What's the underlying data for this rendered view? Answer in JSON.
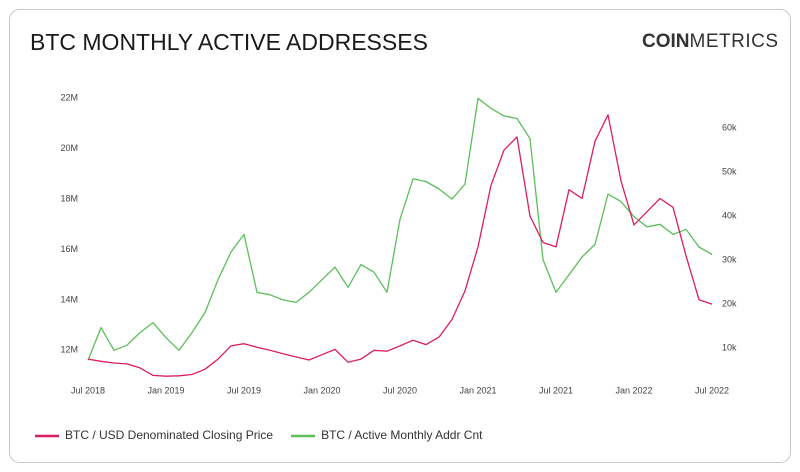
{
  "chart_data": {
    "type": "line",
    "title": "BTC MONTHLY ACTIVE ADDRESSES",
    "logo_bold": "COIN",
    "logo_light": "METRICS",
    "x": [
      "2018-07",
      "2018-08",
      "2018-09",
      "2018-10",
      "2018-11",
      "2018-12",
      "2019-01",
      "2019-02",
      "2019-03",
      "2019-04",
      "2019-05",
      "2019-06",
      "2019-07",
      "2019-08",
      "2019-09",
      "2019-10",
      "2019-11",
      "2019-12",
      "2020-01",
      "2020-02",
      "2020-03",
      "2020-04",
      "2020-05",
      "2020-06",
      "2020-07",
      "2020-08",
      "2020-09",
      "2020-10",
      "2020-11",
      "2020-12",
      "2021-01",
      "2021-02",
      "2021-03",
      "2021-04",
      "2021-05",
      "2021-06",
      "2021-07",
      "2021-08",
      "2021-09",
      "2021-10",
      "2021-11",
      "2021-12",
      "2022-01",
      "2022-02",
      "2022-03",
      "2022-04",
      "2022-05",
      "2022-06",
      "2022-07"
    ],
    "xticks": [
      {
        "value": "2018-07",
        "label": "Jul 2018"
      },
      {
        "value": "2019-01",
        "label": "Jan 2019"
      },
      {
        "value": "2019-07",
        "label": "Jul 2019"
      },
      {
        "value": "2020-01",
        "label": "Jan 2020"
      },
      {
        "value": "2020-07",
        "label": "Jul 2020"
      },
      {
        "value": "2021-01",
        "label": "Jan 2021"
      },
      {
        "value": "2021-07",
        "label": "Jul 2021"
      },
      {
        "value": "2022-01",
        "label": "Jan 2022"
      },
      {
        "value": "2022-07",
        "label": "Jul 2022"
      }
    ],
    "ylim": [
      10900000,
      22250000
    ],
    "yticks": [
      {
        "value": 12000000,
        "label": "12M"
      },
      {
        "value": 14000000,
        "label": "14M"
      },
      {
        "value": 16000000,
        "label": "16M"
      },
      {
        "value": 18000000,
        "label": "18M"
      },
      {
        "value": 20000000,
        "label": "20M"
      },
      {
        "value": 22000000,
        "label": "22M"
      }
    ],
    "y2lim": [
      3200,
      68200
    ],
    "y2ticks": [
      {
        "value": 10000,
        "label": "10k"
      },
      {
        "value": 20000,
        "label": "20k"
      },
      {
        "value": 30000,
        "label": "30k"
      },
      {
        "value": 40000,
        "label": "40k"
      },
      {
        "value": 50000,
        "label": "50k"
      },
      {
        "value": 60000,
        "label": "60k"
      }
    ],
    "grid": false,
    "legend": "bottom-left",
    "series": [
      {
        "name": "BTC / USD Denominated Closing Price",
        "color": "#dc1f5b",
        "axis": "y2",
        "values": [
          7500,
          7000,
          6600,
          6400,
          5500,
          3800,
          3600,
          3700,
          4000,
          5200,
          7500,
          10500,
          11000,
          10200,
          9500,
          8700,
          8000,
          7300,
          8500,
          9700,
          6800,
          7500,
          9500,
          9300,
          10500,
          11800,
          10800,
          12500,
          16500,
          23000,
          33000,
          47000,
          55000,
          58000,
          40000,
          34000,
          33000,
          46000,
          44000,
          57000,
          63000,
          48000,
          38000,
          41000,
          44000,
          42000,
          31000,
          21000,
          20000
        ]
      },
      {
        "name": "BTC / Active Monthly Addr Cnt",
        "color": "#5cbf5c",
        "values": [
          11600000,
          12900000,
          12000000,
          12200000,
          12700000,
          13100000,
          12500000,
          12000000,
          12700000,
          13500000,
          14800000,
          15900000,
          16600000,
          14300000,
          14200000,
          14000000,
          13900000,
          14300000,
          14800000,
          15300000,
          14500000,
          15400000,
          15100000,
          14300000,
          17200000,
          18800000,
          18700000,
          18400000,
          18000000,
          18600000,
          22000000,
          21600000,
          21300000,
          21200000,
          20400000,
          15600000,
          14300000,
          15000000,
          15700000,
          16200000,
          18200000,
          17900000,
          17300000,
          16900000,
          17000000,
          16600000,
          16800000,
          16100000,
          15800000
        ]
      }
    ]
  }
}
